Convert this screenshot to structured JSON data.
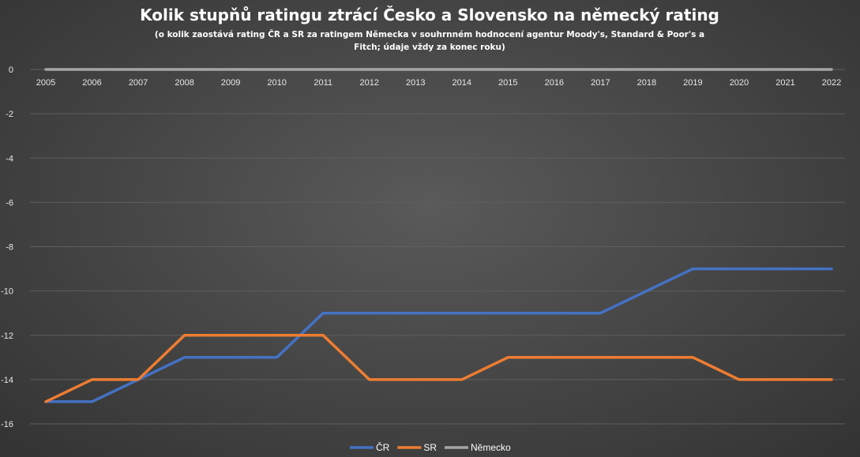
{
  "chart_data": {
    "type": "line",
    "title": "Kolik stupňů ratingu ztrácí Česko a Slovensko na německý rating",
    "subtitle_lines": [
      "(o kolik zaostává rating ČR a SR za ratingem Německa v souhrnném hodnocení agentur Moody's, Standard & Poor's a",
      "Fitch;  údaje vždy za konec roku)"
    ],
    "xlabel": "",
    "ylabel": "",
    "categories": [
      "2005",
      "2006",
      "2007",
      "2008",
      "2009",
      "2010",
      "2011",
      "2012",
      "2013",
      "2014",
      "2015",
      "2016",
      "2017",
      "2018",
      "2019",
      "2020",
      "2021",
      "2022"
    ],
    "ylim": [
      -16,
      0
    ],
    "yticks": [
      0,
      -2,
      -4,
      -6,
      -8,
      -10,
      -12,
      -14,
      -16
    ],
    "grid": true,
    "legend_position": "bottom",
    "series": [
      {
        "name": "ČR",
        "color": "#4472c4",
        "values": [
          -15,
          -15,
          -14,
          -13,
          -13,
          -13,
          -11,
          -11,
          -11,
          -11,
          -11,
          -11,
          -11,
          -10,
          -9,
          -9,
          -9,
          -9
        ]
      },
      {
        "name": "SR",
        "color": "#ed7d31",
        "values": [
          -15,
          -14,
          -14,
          -12,
          -12,
          -12,
          -12,
          -14,
          -14,
          -14,
          -13,
          -13,
          -13,
          -13,
          -13,
          -14,
          -14,
          -14
        ]
      },
      {
        "name": "Německo",
        "color": "#a5a5a5",
        "values": [
          0,
          0,
          0,
          0,
          0,
          0,
          0,
          0,
          0,
          0,
          0,
          0,
          0,
          0,
          0,
          0,
          0,
          0
        ]
      }
    ]
  }
}
